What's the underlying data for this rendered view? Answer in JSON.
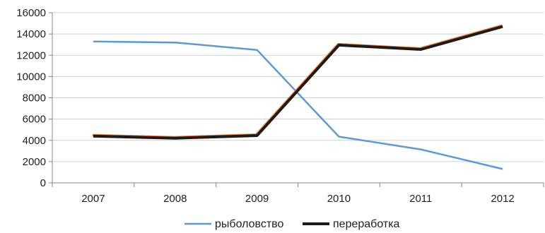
{
  "chart_data": {
    "type": "line",
    "categories": [
      "2007",
      "2008",
      "2009",
      "2010",
      "2011",
      "2012"
    ],
    "ylim": [
      0,
      16000
    ],
    "yticks": [
      0,
      2000,
      4000,
      6000,
      8000,
      10000,
      12000,
      14000,
      16000
    ],
    "grid": true,
    "legend_position": "bottom",
    "series": [
      {
        "name": "рыболовство",
        "color": "#5b9bd5",
        "values": [
          13300,
          13200,
          12500,
          4350,
          3150,
          1300
        ]
      },
      {
        "name": "переработка",
        "color": "#1e1a18",
        "accent": "#ed7d31",
        "values": [
          4400,
          4200,
          4450,
          12950,
          12550,
          14700
        ]
      }
    ]
  }
}
